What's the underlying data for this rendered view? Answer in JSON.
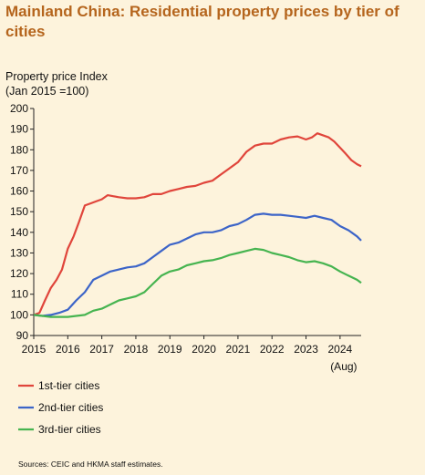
{
  "title": "Mainland China: Residential property prices by tier of cities",
  "source_note": "Sources: CEIC and HKMA staff estimates.",
  "chart_data": {
    "type": "line",
    "title": "Mainland China: Residential property prices by tier of cities",
    "ylabel": "Property price Index",
    "ylabel_sub": "(Jan 2015 =100)",
    "ylim": [
      90,
      200
    ],
    "yticks": [
      90,
      100,
      110,
      120,
      130,
      140,
      150,
      160,
      170,
      180,
      190,
      200
    ],
    "xlim": [
      2015.0,
      2024.62
    ],
    "xticks": [
      2015,
      2016,
      2017,
      2018,
      2019,
      2020,
      2021,
      2022,
      2023,
      2024
    ],
    "x_end_note": "(Aug)",
    "grid": false,
    "legend_position": "bottom-left",
    "series": [
      {
        "name": "1st-tier cities",
        "color": "#e0453b",
        "points": [
          [
            2015.0,
            100
          ],
          [
            2015.17,
            101
          ],
          [
            2015.33,
            107
          ],
          [
            2015.5,
            113
          ],
          [
            2015.67,
            117
          ],
          [
            2015.83,
            122
          ],
          [
            2016.0,
            132
          ],
          [
            2016.17,
            138
          ],
          [
            2016.33,
            145
          ],
          [
            2016.5,
            153
          ],
          [
            2016.67,
            154
          ],
          [
            2016.83,
            155
          ],
          [
            2017.0,
            156
          ],
          [
            2017.17,
            158
          ],
          [
            2017.33,
            157.5
          ],
          [
            2017.5,
            157
          ],
          [
            2017.75,
            156.5
          ],
          [
            2018.0,
            156.5
          ],
          [
            2018.25,
            157
          ],
          [
            2018.5,
            158.5
          ],
          [
            2018.75,
            158.5
          ],
          [
            2019.0,
            160
          ],
          [
            2019.25,
            161
          ],
          [
            2019.5,
            162
          ],
          [
            2019.75,
            162.5
          ],
          [
            2020.0,
            164
          ],
          [
            2020.25,
            165
          ],
          [
            2020.5,
            168
          ],
          [
            2020.75,
            171
          ],
          [
            2021.0,
            174
          ],
          [
            2021.25,
            179
          ],
          [
            2021.5,
            182
          ],
          [
            2021.75,
            183
          ],
          [
            2022.0,
            183
          ],
          [
            2022.25,
            185
          ],
          [
            2022.5,
            186
          ],
          [
            2022.75,
            186.5
          ],
          [
            2023.0,
            185
          ],
          [
            2023.17,
            186
          ],
          [
            2023.33,
            188
          ],
          [
            2023.5,
            187
          ],
          [
            2023.67,
            186
          ],
          [
            2023.83,
            184
          ],
          [
            2024.0,
            181
          ],
          [
            2024.17,
            178
          ],
          [
            2024.33,
            175
          ],
          [
            2024.5,
            173
          ],
          [
            2024.62,
            172
          ]
        ]
      },
      {
        "name": "2nd-tier cities",
        "color": "#3c64c8",
        "points": [
          [
            2015.0,
            100
          ],
          [
            2015.25,
            99.5
          ],
          [
            2015.5,
            100
          ],
          [
            2015.75,
            101
          ],
          [
            2016.0,
            102.5
          ],
          [
            2016.25,
            107
          ],
          [
            2016.5,
            111
          ],
          [
            2016.75,
            117
          ],
          [
            2017.0,
            119
          ],
          [
            2017.25,
            121
          ],
          [
            2017.5,
            122
          ],
          [
            2017.75,
            123
          ],
          [
            2018.0,
            123.5
          ],
          [
            2018.25,
            125
          ],
          [
            2018.5,
            128
          ],
          [
            2018.75,
            131
          ],
          [
            2019.0,
            134
          ],
          [
            2019.25,
            135
          ],
          [
            2019.5,
            137
          ],
          [
            2019.75,
            139
          ],
          [
            2020.0,
            140
          ],
          [
            2020.25,
            140
          ],
          [
            2020.5,
            141
          ],
          [
            2020.75,
            143
          ],
          [
            2021.0,
            144
          ],
          [
            2021.25,
            146
          ],
          [
            2021.5,
            148.5
          ],
          [
            2021.75,
            149
          ],
          [
            2022.0,
            148.5
          ],
          [
            2022.25,
            148.5
          ],
          [
            2022.5,
            148
          ],
          [
            2022.75,
            147.5
          ],
          [
            2023.0,
            147
          ],
          [
            2023.25,
            148
          ],
          [
            2023.5,
            147
          ],
          [
            2023.75,
            146
          ],
          [
            2024.0,
            143
          ],
          [
            2024.25,
            141
          ],
          [
            2024.5,
            138
          ],
          [
            2024.62,
            136
          ]
        ]
      },
      {
        "name": "3rd-tier cities",
        "color": "#46b450",
        "points": [
          [
            2015.0,
            100
          ],
          [
            2015.25,
            99.5
          ],
          [
            2015.5,
            99
          ],
          [
            2015.75,
            99
          ],
          [
            2016.0,
            99
          ],
          [
            2016.25,
            99.5
          ],
          [
            2016.5,
            100
          ],
          [
            2016.75,
            102
          ],
          [
            2017.0,
            103
          ],
          [
            2017.25,
            105
          ],
          [
            2017.5,
            107
          ],
          [
            2017.75,
            108
          ],
          [
            2018.0,
            109
          ],
          [
            2018.25,
            111
          ],
          [
            2018.5,
            115
          ],
          [
            2018.75,
            119
          ],
          [
            2019.0,
            121
          ],
          [
            2019.25,
            122
          ],
          [
            2019.5,
            124
          ],
          [
            2019.75,
            125
          ],
          [
            2020.0,
            126
          ],
          [
            2020.25,
            126.5
          ],
          [
            2020.5,
            127.5
          ],
          [
            2020.75,
            129
          ],
          [
            2021.0,
            130
          ],
          [
            2021.25,
            131
          ],
          [
            2021.5,
            132
          ],
          [
            2021.75,
            131.5
          ],
          [
            2022.0,
            130
          ],
          [
            2022.25,
            129
          ],
          [
            2022.5,
            128
          ],
          [
            2022.75,
            126.5
          ],
          [
            2023.0,
            125.5
          ],
          [
            2023.25,
            126
          ],
          [
            2023.5,
            125
          ],
          [
            2023.75,
            123.5
          ],
          [
            2024.0,
            121
          ],
          [
            2024.25,
            119
          ],
          [
            2024.5,
            117
          ],
          [
            2024.62,
            115.5
          ]
        ]
      }
    ]
  }
}
